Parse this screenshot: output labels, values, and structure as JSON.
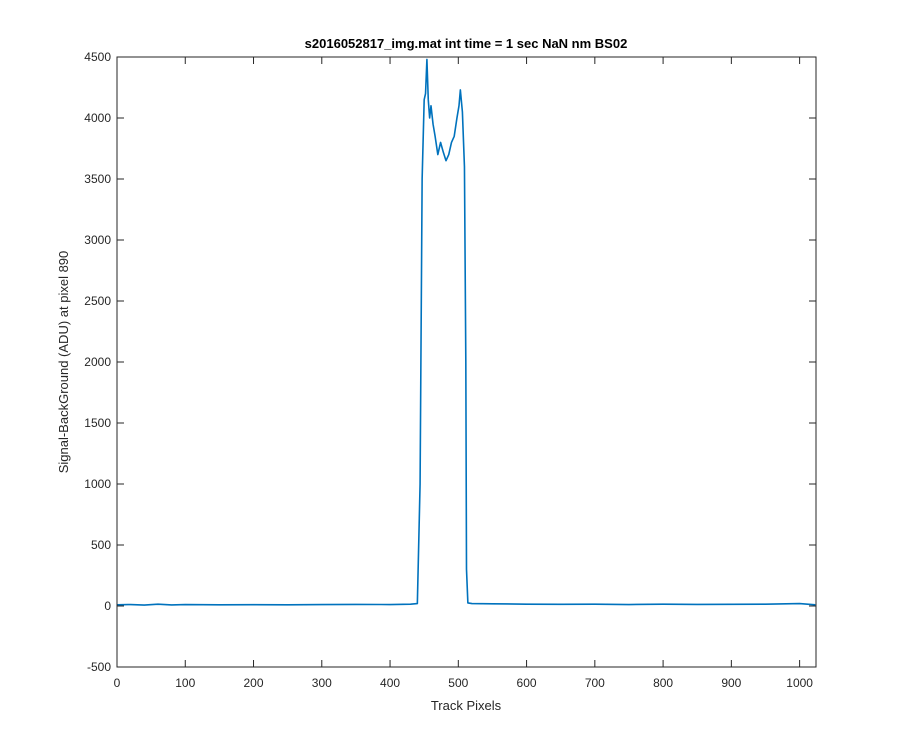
{
  "chart_data": {
    "type": "line",
    "title": "s2016052817_img.mat int time = 1 sec  NaN nm BS02",
    "xlabel": "Track Pixels",
    "ylabel": "Signal-BackGround (ADU) at pixel 890",
    "xlim": [
      0,
      1024
    ],
    "ylim": [
      -500,
      4500
    ],
    "x_ticks": [
      0,
      100,
      200,
      300,
      400,
      500,
      600,
      700,
      800,
      900,
      1000
    ],
    "y_ticks": [
      -500,
      0,
      500,
      1000,
      1500,
      2000,
      2500,
      3000,
      3500,
      4000,
      4500
    ],
    "grid": false,
    "line_color": "#0072BD",
    "series": [
      {
        "x": [
          0,
          20,
          40,
          60,
          80,
          100,
          150,
          200,
          250,
          300,
          350,
          400,
          430,
          440,
          444,
          447,
          450,
          452,
          454,
          456,
          458,
          460,
          463,
          466,
          470,
          474,
          478,
          482,
          486,
          490,
          494,
          498,
          501,
          503,
          506,
          509,
          511,
          512,
          514,
          520,
          550,
          600,
          650,
          700,
          750,
          800,
          850,
          900,
          950,
          1000,
          1023
        ],
        "y": [
          10,
          12,
          8,
          15,
          9,
          12,
          10,
          11,
          10,
          12,
          13,
          12,
          15,
          20,
          1000,
          3500,
          4150,
          4200,
          4480,
          4150,
          4000,
          4100,
          3950,
          3850,
          3700,
          3800,
          3720,
          3650,
          3700,
          3800,
          3850,
          4000,
          4100,
          4230,
          4050,
          3600,
          2000,
          300,
          25,
          20,
          18,
          15,
          14,
          15,
          12,
          15,
          13,
          14,
          15,
          20,
          10
        ]
      }
    ]
  }
}
